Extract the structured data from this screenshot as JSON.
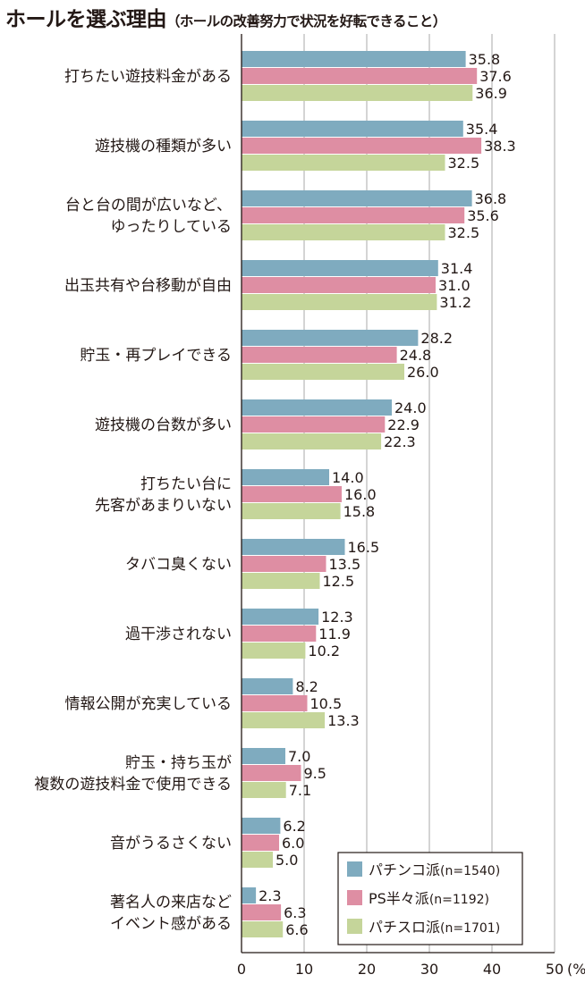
{
  "title": {
    "main": "ホールを選ぶ理由",
    "sub": "（ホールの改善努力で状況を好転できること）"
  },
  "chart_data": {
    "type": "bar",
    "orientation": "horizontal",
    "title": "ホールを選ぶ理由（ホールの改善努力で状況を好転できること）",
    "categories": [
      [
        "打ちたい遊技料金がある"
      ],
      [
        "遊技機の種類が多い"
      ],
      [
        "台と台の間が広いなど、",
        "ゆったりしている"
      ],
      [
        "出玉共有や台移動が自由"
      ],
      [
        "貯玉・再プレイできる"
      ],
      [
        "遊技機の台数が多い"
      ],
      [
        "打ちたい台に",
        "先客があまりいない"
      ],
      [
        "タバコ臭くない"
      ],
      [
        "過干渉されない"
      ],
      [
        "情報公開が充実している"
      ],
      [
        "貯玉・持ち玉が",
        "複数の遊技料金で使用できる"
      ],
      [
        "音がうるさくない"
      ],
      [
        "著名人の来店など",
        "イベント感がある"
      ]
    ],
    "series": [
      {
        "name": "パチンコ派",
        "n": "(n=1540)",
        "color": "#7fabbf",
        "values": [
          35.8,
          35.4,
          36.8,
          31.4,
          28.2,
          24.0,
          14.0,
          16.5,
          12.3,
          8.2,
          7.0,
          6.2,
          2.3
        ],
        "labels": [
          "35.8",
          "35.4",
          "36.8",
          "31.4",
          "28.2",
          "24.0",
          "14.0",
          "16.5",
          "12.3",
          "8.2",
          "7.0",
          "6.2",
          "2.3"
        ]
      },
      {
        "name": "PS半々派",
        "n": "(n=1192)",
        "color": "#de8ea3",
        "values": [
          37.6,
          38.3,
          35.6,
          31.0,
          24.8,
          22.9,
          16.0,
          13.5,
          11.9,
          10.5,
          9.5,
          6.0,
          6.3
        ],
        "labels": [
          "37.6",
          "38.3",
          "35.6",
          "31.0",
          "24.8",
          "22.9",
          "16.0",
          "13.5",
          "11.9",
          "10.5",
          "9.5",
          "6.0",
          "6.3"
        ]
      },
      {
        "name": "パチスロ派",
        "n": "(n=1701)",
        "color": "#c5d59a",
        "values": [
          36.9,
          32.5,
          32.5,
          31.2,
          26.0,
          22.3,
          15.8,
          12.5,
          10.2,
          13.3,
          7.1,
          5.0,
          6.6
        ],
        "labels": [
          "36.9",
          "32.5",
          "32.5",
          "31.2",
          "26.0",
          "22.3",
          "15.8",
          "12.5",
          "10.2",
          "13.3",
          "7.1",
          "5.0",
          "6.6"
        ]
      }
    ],
    "x_ticks": [
      "0",
      "10",
      "20",
      "30",
      "40",
      "50"
    ],
    "xlim": [
      0,
      50
    ],
    "x_unit": "(%)",
    "grid": true,
    "legend_position": "bottom-right"
  }
}
